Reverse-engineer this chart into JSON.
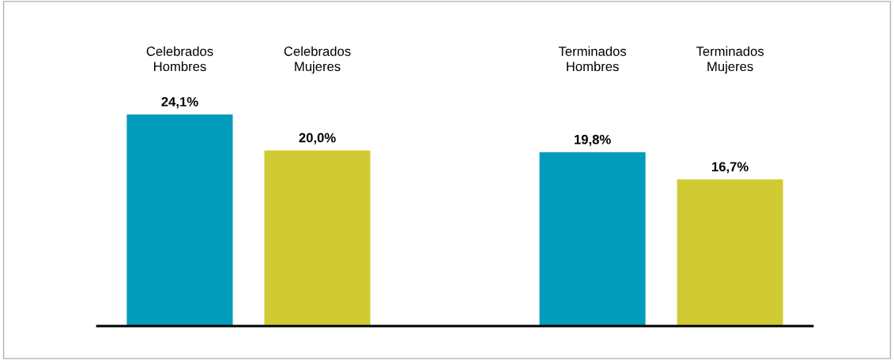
{
  "chart_data": {
    "type": "bar",
    "categories": [
      "Celebrados\nHombres",
      "Celebrados\nMujeres",
      null,
      "Terminados\nHombres",
      "Terminados\nMujeres"
    ],
    "values": [
      24.1,
      20.0,
      null,
      19.8,
      16.7
    ],
    "colors": [
      "#019bbb",
      "#d1cb33",
      null,
      "#019bbb",
      "#d1cb33"
    ],
    "value_labels": [
      "24,1%",
      "20,0%",
      null,
      "19,8%",
      "16,7%"
    ]
  }
}
